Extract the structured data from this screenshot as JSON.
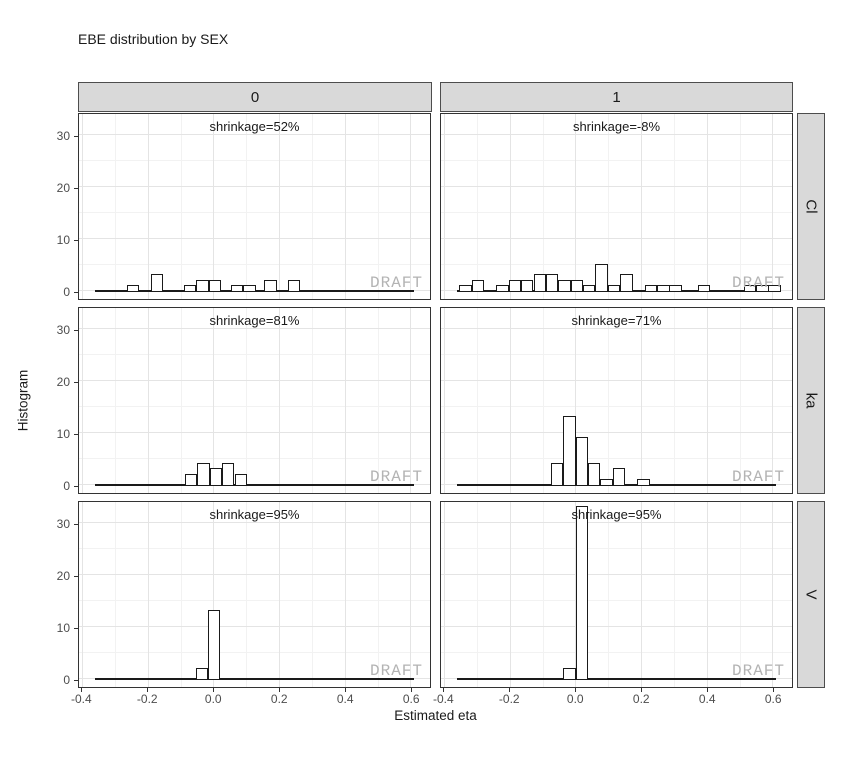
{
  "title": "EBE distribution by SEX",
  "watermark": "DRAFT",
  "colors": {
    "strip_bg": "#d9d9d9",
    "strip_border": "#4d4d4d",
    "panel_border": "#333333",
    "grid_major": "#e4e4e4",
    "grid_minor": "#f2f2f2",
    "bar_border": "#1a1a1a",
    "bar_fill": "#ffffff",
    "watermark": "#b3b3b3",
    "text": "#1a1a1a",
    "tick_text": "#4d4d4d"
  },
  "chart_data": {
    "type": "bar",
    "subtype": "faceted-histogram",
    "title": "EBE distribution by SEX",
    "xlabel": "Estimated eta",
    "ylabel": "Histogram",
    "col_facets": [
      "0",
      "1"
    ],
    "row_facets": [
      "Cl",
      "ka",
      "V"
    ],
    "x_ticks": [
      -0.4,
      -0.2,
      0.0,
      0.2,
      0.4,
      0.6
    ],
    "x_tick_labels": [
      "-0.4",
      "-0.2",
      "0.0",
      "0.2",
      "0.4",
      "0.6"
    ],
    "x_minor": [
      -0.3,
      -0.1,
      0.1,
      0.3,
      0.5
    ],
    "y_ticks": [
      0,
      10,
      20,
      30
    ],
    "y_tick_labels": [
      "0",
      "10",
      "20",
      "30"
    ],
    "y_minor": [
      5,
      15,
      25
    ],
    "x_domain": [
      -0.41,
      0.66
    ],
    "ylim": [
      0,
      34.5
    ],
    "bin_width": 0.0377,
    "zero_line": [
      -0.36,
      0.61
    ],
    "grid": true,
    "legend": "none",
    "panels": [
      {
        "row": "Cl",
        "col": "0",
        "shrinkage": "shrinkage=52%",
        "bars": [
          {
            "x": -0.245,
            "n": 1
          },
          {
            "x": -0.172,
            "n": 3
          },
          {
            "x": -0.072,
            "n": 1
          },
          {
            "x": -0.034,
            "n": 2
          },
          {
            "x": 0.004,
            "n": 2
          },
          {
            "x": 0.071,
            "n": 1
          },
          {
            "x": 0.11,
            "n": 1
          },
          {
            "x": 0.174,
            "n": 2
          },
          {
            "x": 0.245,
            "n": 2
          }
        ]
      },
      {
        "row": "Cl",
        "col": "1",
        "shrinkage": "shrinkage=-8%",
        "bars": [
          {
            "x": -0.335,
            "n": 1
          },
          {
            "x": -0.297,
            "n": 2
          },
          {
            "x": -0.222,
            "n": 1
          },
          {
            "x": -0.184,
            "n": 2
          },
          {
            "x": -0.147,
            "n": 2
          },
          {
            "x": -0.109,
            "n": 3
          },
          {
            "x": -0.071,
            "n": 3
          },
          {
            "x": -0.034,
            "n": 2
          },
          {
            "x": 0.004,
            "n": 2
          },
          {
            "x": 0.042,
            "n": 1
          },
          {
            "x": 0.079,
            "n": 5
          },
          {
            "x": 0.117,
            "n": 1
          },
          {
            "x": 0.155,
            "n": 3
          },
          {
            "x": 0.23,
            "n": 1
          },
          {
            "x": 0.268,
            "n": 1
          },
          {
            "x": 0.305,
            "n": 1
          },
          {
            "x": 0.392,
            "n": 1
          },
          {
            "x": 0.532,
            "n": 1
          },
          {
            "x": 0.57,
            "n": 1
          },
          {
            "x": 0.607,
            "n": 1
          }
        ]
      },
      {
        "row": "ka",
        "col": "0",
        "shrinkage": "shrinkage=81%",
        "bars": [
          {
            "x": -0.068,
            "n": 2
          },
          {
            "x": -0.03,
            "n": 4
          },
          {
            "x": 0.008,
            "n": 3
          },
          {
            "x": 0.045,
            "n": 4
          },
          {
            "x": 0.083,
            "n": 2
          }
        ]
      },
      {
        "row": "ka",
        "col": "1",
        "shrinkage": "shrinkage=71%",
        "bars": [
          {
            "x": -0.056,
            "n": 4
          },
          {
            "x": -0.018,
            "n": 13
          },
          {
            "x": 0.02,
            "n": 9
          },
          {
            "x": 0.057,
            "n": 4
          },
          {
            "x": 0.095,
            "n": 1
          },
          {
            "x": 0.132,
            "n": 3
          },
          {
            "x": 0.207,
            "n": 1
          }
        ]
      },
      {
        "row": "V",
        "col": "0",
        "shrinkage": "shrinkage=95%",
        "bars": [
          {
            "x": -0.036,
            "n": 2
          },
          {
            "x": 0.002,
            "n": 13
          }
        ]
      },
      {
        "row": "V",
        "col": "1",
        "shrinkage": "shrinkage=95%",
        "bars": [
          {
            "x": -0.018,
            "n": 2
          },
          {
            "x": 0.02,
            "n": 33
          }
        ]
      }
    ]
  }
}
